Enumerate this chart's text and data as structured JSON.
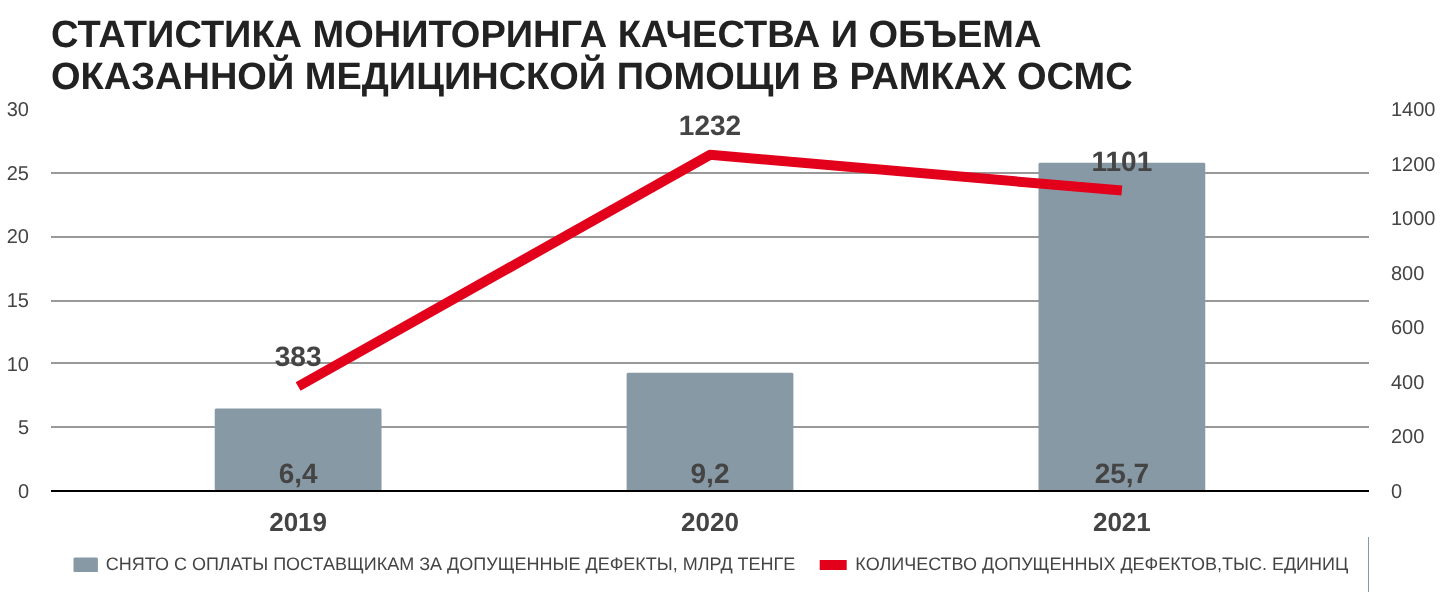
{
  "chart_data": {
    "type": "bar",
    "title": "СТАТИСТИКА МОНИТОРИНГА КАЧЕСТВА И ОБЪЕМА ОКАЗАННОЙ МЕДИЦИНСКОЙ ПОМОЩИ В РАМКАХ ОСМС",
    "categories": [
      "2019",
      "2020",
      "2021"
    ],
    "series": [
      {
        "name": "СНЯТО С ОПЛАТЫ ПОСТАВЩИКАМ ЗА ДОПУЩЕННЫЕ ДЕФЕКТЫ, МЛРД ТЕНГЕ",
        "color": "#8899a6",
        "values": [
          6.4,
          9.2,
          25.7
        ],
        "value_labels": [
          "6,4",
          "9,2",
          "25,7"
        ]
      },
      {
        "name": "КОЛИЧЕСТВО ДОПУЩЕННЫХ ДЕФЕКТОВ,ТЫС. ЕДИНИЦ",
        "type": "line",
        "axis": "y2",
        "color": "#e3001b",
        "values": [
          383,
          1232,
          1101
        ],
        "value_labels": [
          "383",
          "1232",
          "1101"
        ]
      }
    ],
    "ylim": [
      0,
      30
    ],
    "yticks": [
      0,
      5,
      10,
      15,
      20,
      25,
      30
    ],
    "y2lim": [
      0,
      1400
    ],
    "y2ticks": [
      0,
      200,
      400,
      600,
      800,
      1000,
      1200,
      1400
    ],
    "grid": "y",
    "legend": "bottom"
  }
}
